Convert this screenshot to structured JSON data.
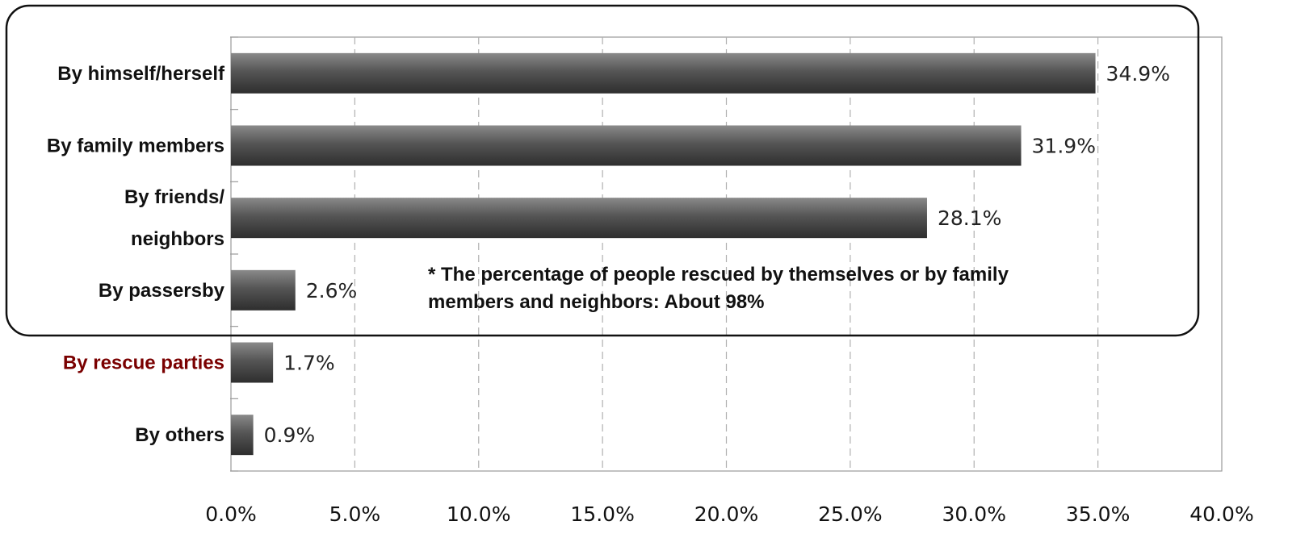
{
  "chart_data": {
    "type": "bar",
    "orientation": "horizontal",
    "categories": [
      [
        "By himself/herself"
      ],
      [
        "By family members"
      ],
      [
        "By friends/",
        "neighbors"
      ],
      [
        "By passersby"
      ],
      [
        "By rescue parties"
      ],
      [
        "By others"
      ]
    ],
    "values": [
      34.9,
      31.9,
      28.1,
      2.6,
      1.7,
      0.9
    ],
    "value_labels": [
      "34.9%",
      "31.9%",
      "28.1%",
      "2.6%",
      "1.7%",
      "0.9%"
    ],
    "xlim": [
      0,
      40
    ],
    "x_ticks": [
      0,
      5,
      10,
      15,
      20,
      25,
      30,
      35,
      40
    ],
    "x_tick_labels": [
      "0.0%",
      "5.0%",
      "10.0%",
      "15.0%",
      "20.0%",
      "25.0%",
      "30.0%",
      "35.0%",
      "40.0%"
    ],
    "grid": "vertical dashed",
    "highlight_category_index": 4,
    "highlight_color": "#7a0000",
    "bar_color": "#4a4a4a",
    "annotation": [
      "* The percentage of people rescued by themselves or by family",
      "members and neighbors: About 98%"
    ]
  }
}
